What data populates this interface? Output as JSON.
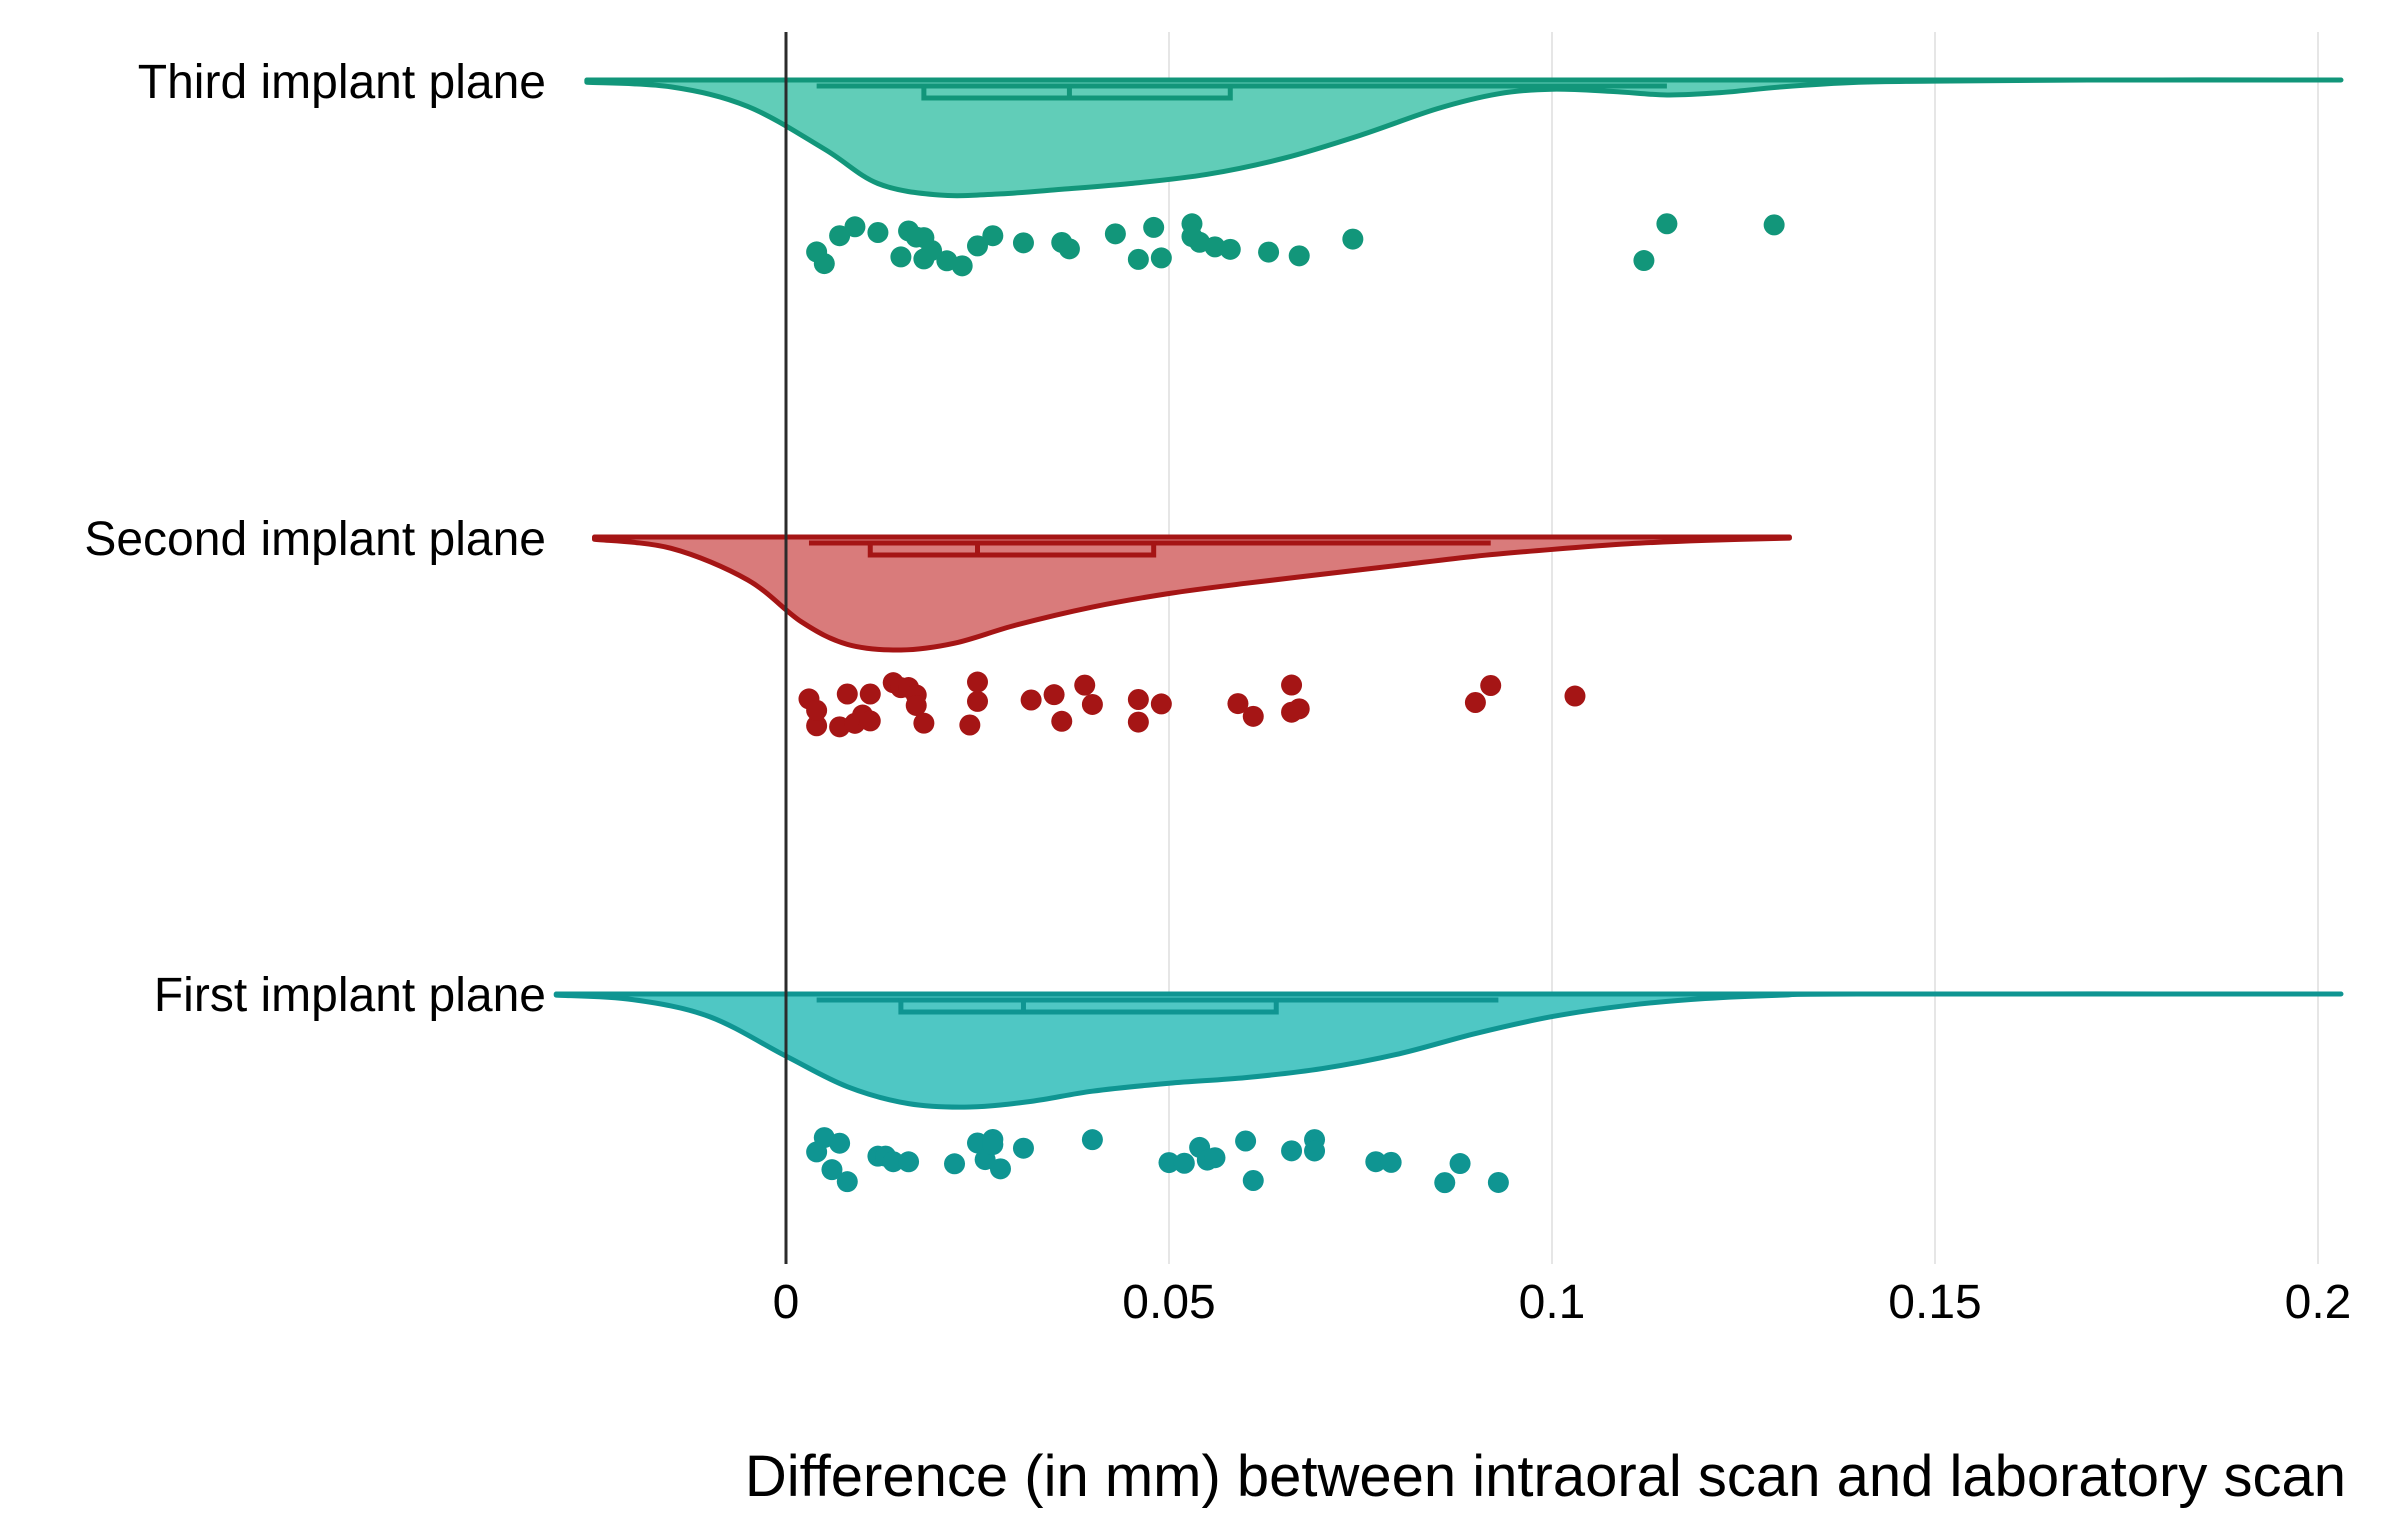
{
  "chart_data": {
    "type": "raincloud",
    "title": "",
    "xlabel": "Difference (in mm) between intraoral scan and laboratory scan",
    "ylabel": "",
    "xlim": [
      -0.053,
      0.205
    ],
    "x_ticks": [
      0,
      0.05,
      0.1,
      0.15,
      0.2
    ],
    "x_tick_labels": [
      "0",
      "0.05",
      "0.1",
      "0.15",
      "0.2"
    ],
    "grid": "vertical",
    "reference_line": 0,
    "series": [
      {
        "name": "Third implant plane",
        "color": "#12967a",
        "fill": "#61cdb8",
        "whisker": [
          0.004,
          0.115
        ],
        "box": [
          0.018,
          0.058
        ],
        "median": 0.037,
        "density_range": [
          -0.026,
          0.203
        ],
        "density": [
          [
            -0.026,
            0.02
          ],
          [
            -0.015,
            0.06
          ],
          [
            -0.005,
            0.23
          ],
          [
            0.005,
            0.6
          ],
          [
            0.012,
            0.9
          ],
          [
            0.02,
            1.0
          ],
          [
            0.028,
            0.99
          ],
          [
            0.036,
            0.95
          ],
          [
            0.045,
            0.9
          ],
          [
            0.055,
            0.82
          ],
          [
            0.065,
            0.68
          ],
          [
            0.075,
            0.48
          ],
          [
            0.085,
            0.25
          ],
          [
            0.093,
            0.12
          ],
          [
            0.1,
            0.08
          ],
          [
            0.108,
            0.1
          ],
          [
            0.115,
            0.13
          ],
          [
            0.122,
            0.11
          ],
          [
            0.13,
            0.06
          ],
          [
            0.14,
            0.02
          ],
          [
            0.15,
            0.01
          ],
          [
            0.17,
            0.0
          ],
          [
            0.203,
            0.0
          ]
        ],
        "points": [
          0.004,
          0.005,
          0.007,
          0.009,
          0.012,
          0.015,
          0.016,
          0.017,
          0.018,
          0.018,
          0.019,
          0.021,
          0.023,
          0.025,
          0.027,
          0.031,
          0.036,
          0.037,
          0.043,
          0.046,
          0.048,
          0.049,
          0.053,
          0.053,
          0.054,
          0.056,
          0.058,
          0.063,
          0.067,
          0.074,
          0.112,
          0.115,
          0.129
        ]
      },
      {
        "name": "Second implant plane",
        "color": "#a51515",
        "fill": "#d97b7b",
        "whisker": [
          0.003,
          0.092
        ],
        "box": [
          0.011,
          0.048
        ],
        "median": 0.025,
        "density_range": [
          -0.025,
          0.131
        ],
        "density": [
          [
            -0.025,
            0.02
          ],
          [
            -0.015,
            0.1
          ],
          [
            -0.005,
            0.38
          ],
          [
            0.002,
            0.75
          ],
          [
            0.008,
            0.95
          ],
          [
            0.015,
            1.0
          ],
          [
            0.022,
            0.94
          ],
          [
            0.03,
            0.78
          ],
          [
            0.04,
            0.62
          ],
          [
            0.05,
            0.5
          ],
          [
            0.06,
            0.41
          ],
          [
            0.07,
            0.33
          ],
          [
            0.08,
            0.25
          ],
          [
            0.09,
            0.17
          ],
          [
            0.1,
            0.11
          ],
          [
            0.11,
            0.06
          ],
          [
            0.12,
            0.03
          ],
          [
            0.131,
            0.01
          ]
        ],
        "points": [
          0.003,
          0.004,
          0.004,
          0.007,
          0.008,
          0.009,
          0.01,
          0.011,
          0.011,
          0.014,
          0.015,
          0.016,
          0.017,
          0.017,
          0.018,
          0.024,
          0.025,
          0.025,
          0.032,
          0.035,
          0.036,
          0.039,
          0.04,
          0.046,
          0.046,
          0.049,
          0.059,
          0.061,
          0.066,
          0.066,
          0.067,
          0.09,
          0.092,
          0.103
        ]
      },
      {
        "name": "First implant plane",
        "color": "#0f9592",
        "fill": "#4fc7c4",
        "whisker": [
          0.004,
          0.093
        ],
        "box": [
          0.015,
          0.064
        ],
        "median": 0.031,
        "density_range": [
          -0.03,
          0.203
        ],
        "density": [
          [
            -0.03,
            0.01
          ],
          [
            -0.02,
            0.05
          ],
          [
            -0.01,
            0.2
          ],
          [
            0.0,
            0.55
          ],
          [
            0.008,
            0.82
          ],
          [
            0.016,
            0.97
          ],
          [
            0.024,
            1.0
          ],
          [
            0.032,
            0.95
          ],
          [
            0.04,
            0.86
          ],
          [
            0.05,
            0.79
          ],
          [
            0.06,
            0.74
          ],
          [
            0.07,
            0.66
          ],
          [
            0.08,
            0.53
          ],
          [
            0.09,
            0.35
          ],
          [
            0.1,
            0.2
          ],
          [
            0.11,
            0.1
          ],
          [
            0.12,
            0.04
          ],
          [
            0.13,
            0.01
          ],
          [
            0.14,
            0.0
          ],
          [
            0.203,
            0.0
          ]
        ],
        "points": [
          0.004,
          0.005,
          0.006,
          0.007,
          0.008,
          0.012,
          0.013,
          0.014,
          0.016,
          0.022,
          0.025,
          0.026,
          0.027,
          0.027,
          0.028,
          0.031,
          0.04,
          0.05,
          0.052,
          0.054,
          0.055,
          0.056,
          0.06,
          0.061,
          0.066,
          0.069,
          0.069,
          0.077,
          0.079,
          0.086,
          0.088,
          0.093
        ]
      }
    ]
  }
}
